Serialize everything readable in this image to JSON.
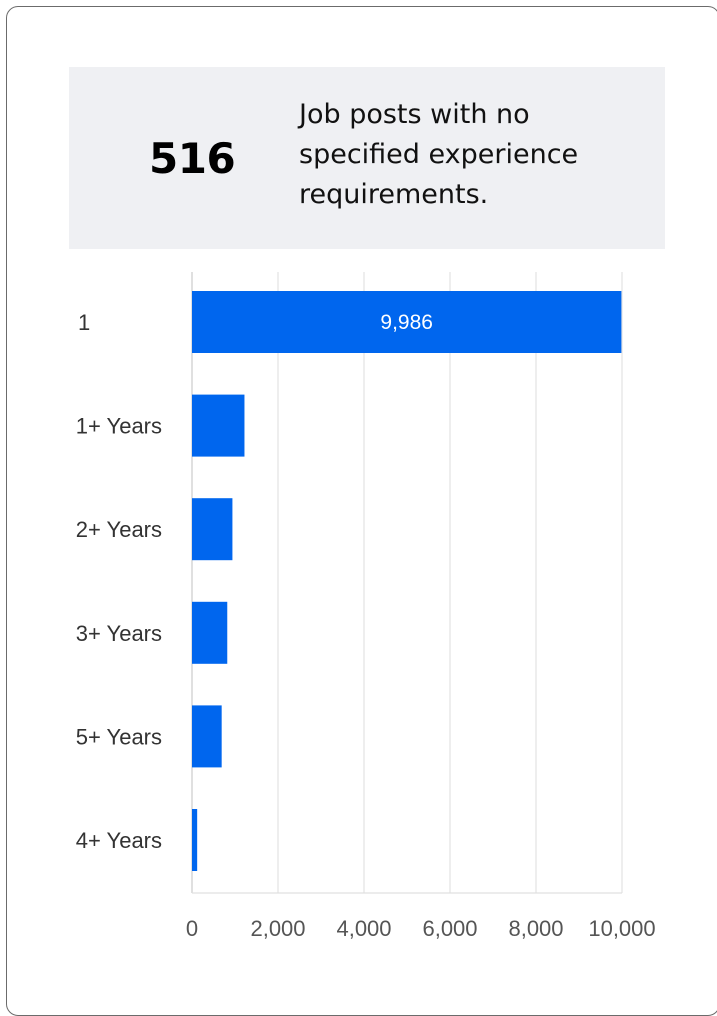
{
  "kpi": {
    "value": "516",
    "description": "Job posts with no specified experience requirements."
  },
  "chart_data": {
    "type": "bar",
    "orientation": "horizontal",
    "categories": [
      "1",
      "1+ Years",
      "2+ Years",
      "3+ Years",
      "5+ Years",
      "4+ Years"
    ],
    "values": [
      9986,
      1220,
      940,
      820,
      690,
      120
    ],
    "data_labels": [
      "9,986",
      "",
      "",
      "",
      "",
      ""
    ],
    "xlim": [
      0,
      10000
    ],
    "xticks": [
      0,
      2000,
      4000,
      6000,
      8000,
      10000
    ],
    "xtick_labels": [
      "0",
      "2,000",
      "4,000",
      "6,000",
      "8,000",
      "10,000"
    ],
    "grid": true,
    "bar_color": "#0066ee",
    "grid_color": "#e2e2e2"
  }
}
